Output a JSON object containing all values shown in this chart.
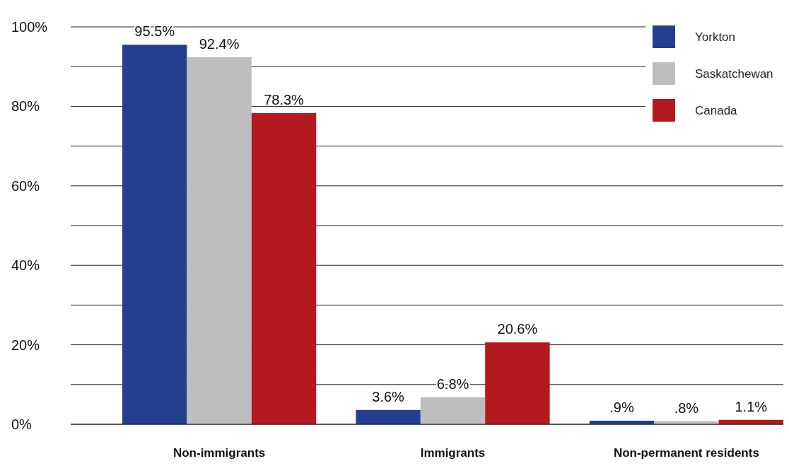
{
  "chart_data": {
    "type": "bar",
    "categories": [
      "Non-immigrants",
      "Immigrants",
      "Non-permanent residents"
    ],
    "series": [
      {
        "name": "Yorkton",
        "color": "#253f8f",
        "values": [
          95.5,
          3.6,
          0.9
        ],
        "value_labels": [
          "95.5%",
          "3.6%",
          ".9%"
        ]
      },
      {
        "name": "Saskatchewan",
        "color": "#bdbec0",
        "values": [
          92.4,
          6.8,
          0.8
        ],
        "value_labels": [
          "92.4%",
          "6.8%",
          ".8%"
        ]
      },
      {
        "name": "Canada",
        "color": "#b3191e",
        "values": [
          78.3,
          20.6,
          1.1
        ],
        "value_labels": [
          "78.3%",
          "20.6%",
          "1.1%"
        ]
      }
    ],
    "ylim": [
      0,
      100
    ],
    "yticks": [
      {
        "value": 0,
        "label": "0%"
      },
      {
        "value": 10,
        "label": null
      },
      {
        "value": 20,
        "label": "20%"
      },
      {
        "value": 30,
        "label": null
      },
      {
        "value": 40,
        "label": "40%"
      },
      {
        "value": 50,
        "label": null
      },
      {
        "value": 60,
        "label": "60%"
      },
      {
        "value": 70,
        "label": null
      },
      {
        "value": 80,
        "label": "80%"
      },
      {
        "value": 90,
        "label": null
      },
      {
        "value": 100,
        "label": "100%"
      }
    ],
    "grid": "y",
    "legend": "top right"
  }
}
